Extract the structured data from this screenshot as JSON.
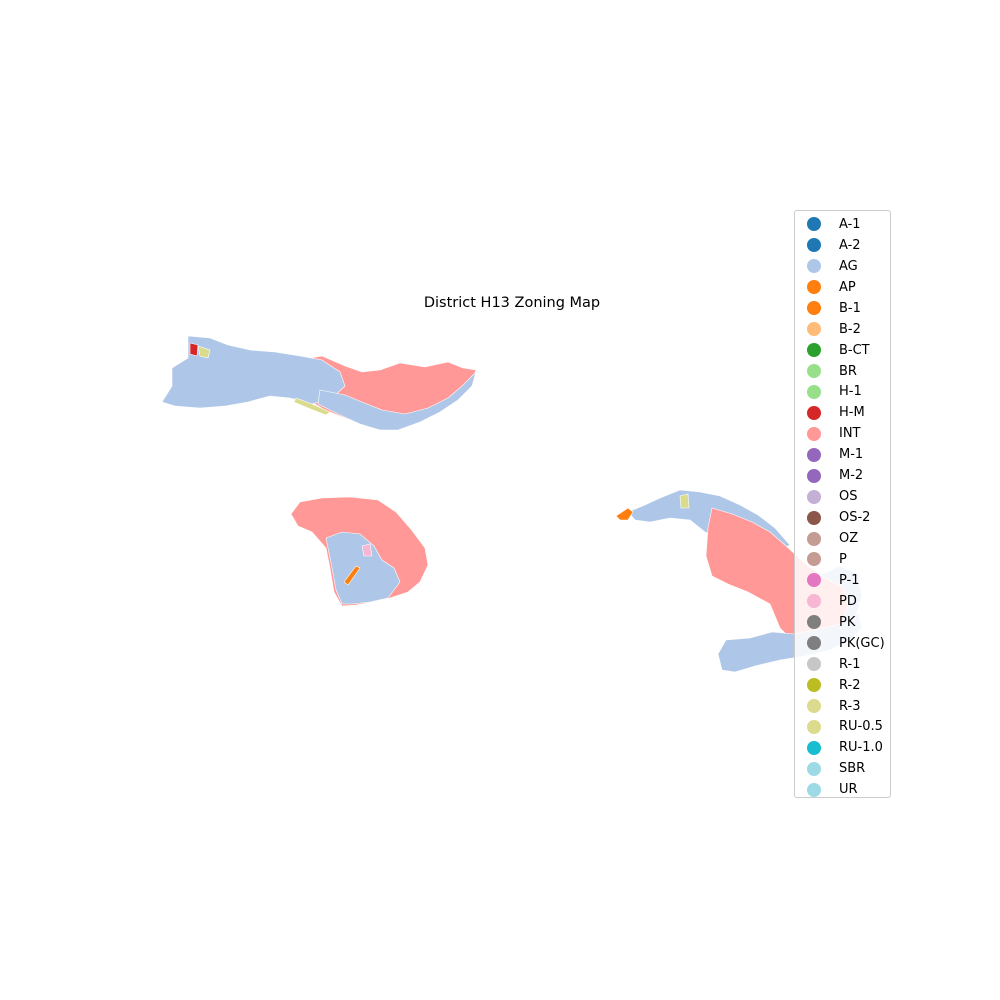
{
  "title": "District H13 Zoning Map",
  "legend": [
    {
      "label": "A-1",
      "color": "#1f77b4"
    },
    {
      "label": "A-2",
      "color": "#1f77b4"
    },
    {
      "label": "AG",
      "color": "#aec7e8"
    },
    {
      "label": "AP",
      "color": "#ff7f0e"
    },
    {
      "label": "B-1",
      "color": "#ff7f0e"
    },
    {
      "label": "B-2",
      "color": "#ffbb78"
    },
    {
      "label": "B-CT",
      "color": "#2ca02c"
    },
    {
      "label": "BR",
      "color": "#98df8a"
    },
    {
      "label": "H-1",
      "color": "#98df8a"
    },
    {
      "label": "H-M",
      "color": "#d62728"
    },
    {
      "label": "INT",
      "color": "#ff9896"
    },
    {
      "label": "M-1",
      "color": "#9467bd"
    },
    {
      "label": "M-2",
      "color": "#9467bd"
    },
    {
      "label": "OS",
      "color": "#c5b0d5"
    },
    {
      "label": "OS-2",
      "color": "#8c564b"
    },
    {
      "label": "OZ",
      "color": "#c49c94"
    },
    {
      "label": "P",
      "color": "#c49c94"
    },
    {
      "label": "P-1",
      "color": "#e377c2"
    },
    {
      "label": "PD",
      "color": "#f7b6d2"
    },
    {
      "label": "PK",
      "color": "#7f7f7f"
    },
    {
      "label": "PK(GC)",
      "color": "#7f7f7f"
    },
    {
      "label": "R-1",
      "color": "#c7c7c7"
    },
    {
      "label": "R-2",
      "color": "#bcbd22"
    },
    {
      "label": "R-3",
      "color": "#dbdb8d"
    },
    {
      "label": "RU-0.5",
      "color": "#dbdb8d"
    },
    {
      "label": "RU-1.0",
      "color": "#17becf"
    },
    {
      "label": "SBR",
      "color": "#9edae5"
    },
    {
      "label": "UR",
      "color": "#9edae5"
    }
  ],
  "colors": {
    "ag": "#aec7e8",
    "int": "#ff9896",
    "commercial": "#ff7f0e",
    "residential": "#dbdb8d",
    "hotel": "#d62728",
    "industrial": "#9467bd",
    "pd": "#f7b6d2",
    "border": "#ffffff"
  }
}
